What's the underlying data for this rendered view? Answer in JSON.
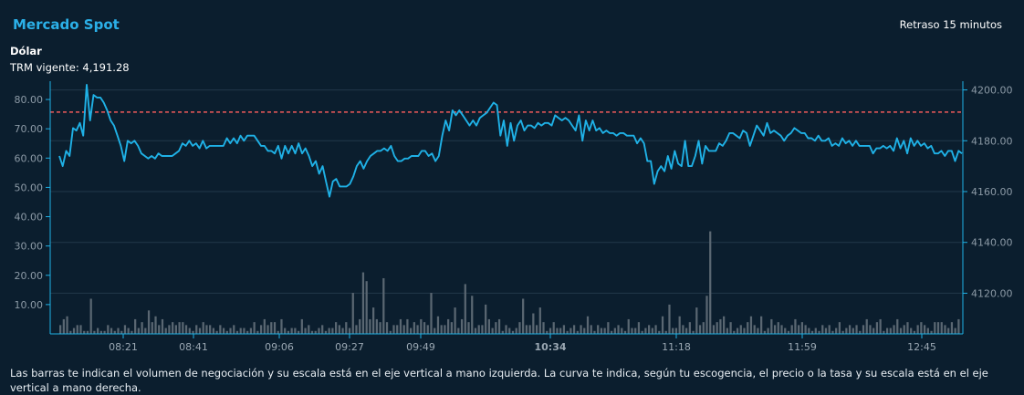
{
  "header": {
    "title": "Mercado Spot",
    "delay": "Retraso 15 minutos",
    "asset": "Dólar",
    "trm": "TRM vigente: 4,191.28"
  },
  "footer_note": "Las barras te indican el volumen de negociación y su escala está en el eje vertical a mano izquierda. La curva te indica, según tu escogencia, el precio o la tasa y su escala está en el eje vertical a mano derecha.",
  "colors": {
    "line": "#1fb1e6",
    "bars": "#5a6772",
    "reference": "#f05a5a",
    "background": "#0b1e2e"
  },
  "chart_data": {
    "type": "line",
    "x_ticks": [
      {
        "label": "08:21",
        "bold": false
      },
      {
        "label": "08:41",
        "bold": false
      },
      {
        "label": "09:06",
        "bold": false
      },
      {
        "label": "09:27",
        "bold": false
      },
      {
        "label": "09:49",
        "bold": false
      },
      {
        "label": "10:34",
        "bold": true
      },
      {
        "label": "11:18",
        "bold": false
      },
      {
        "label": "11:59",
        "bold": false
      },
      {
        "label": "12:45",
        "bold": false
      }
    ],
    "y_left": {
      "ticks": [
        "10.00",
        "20.00",
        "30.00",
        "40.00",
        "50.00",
        "60.00",
        "70.00",
        "80.00"
      ],
      "range": [
        0,
        85
      ]
    },
    "y_right": {
      "ticks": [
        "4120.00",
        "4140.00",
        "4160.00",
        "4180.00",
        "4200.00"
      ],
      "range": [
        4104,
        4202
      ]
    },
    "reference_value": 4191.28,
    "series": [
      {
        "kind": "line",
        "axis": "right",
        "values": [
          4174,
          4170,
          4176,
          4174,
          4185,
          4184,
          4187,
          4182,
          4202,
          4188,
          4198,
          4197,
          4197,
          4195,
          4192,
          4188,
          4186,
          4182,
          4178,
          4172,
          4180,
          4179,
          4180,
          4178,
          4175,
          4174,
          4173,
          4174,
          4173,
          4175,
          4174,
          4174,
          4174,
          4174,
          4175,
          4176,
          4179,
          4178,
          4180,
          4178,
          4179,
          4177,
          4180,
          4177,
          4178,
          4178,
          4178,
          4178,
          4178,
          4181,
          4179,
          4181,
          4179,
          4182,
          4180,
          4182,
          4182,
          4182,
          4180,
          4178,
          4178,
          4176,
          4176,
          4175,
          4178,
          4173,
          4178,
          4175,
          4178,
          4175,
          4179,
          4175,
          4177,
          4174,
          4170,
          4172,
          4167,
          4170,
          4164,
          4158,
          4164,
          4165,
          4162,
          4162,
          4162,
          4163,
          4166,
          4170,
          4172,
          4169,
          4172,
          4174,
          4175,
          4176,
          4176,
          4177,
          4176,
          4178,
          4174,
          4172,
          4172,
          4173,
          4173,
          4174,
          4174,
          4174,
          4176,
          4176,
          4174,
          4175,
          4172,
          4174,
          4182,
          4188,
          4184,
          4192,
          4190,
          4192,
          4190,
          4188,
          4186,
          4188,
          4186,
          4189,
          4190,
          4191,
          4193,
          4195,
          4194,
          4182,
          4188,
          4178,
          4187,
          4180,
          4186,
          4188,
          4184,
          4186,
          4186,
          4185,
          4187,
          4186,
          4187,
          4187,
          4186,
          4190,
          4189,
          4188,
          4189,
          4188,
          4186,
          4184,
          4190,
          4180,
          4188,
          4184,
          4188,
          4184,
          4185,
          4183,
          4184,
          4183,
          4183,
          4182,
          4183,
          4183,
          4182,
          4182,
          4182,
          4179,
          4181,
          4179,
          4172,
          4172,
          4163,
          4168,
          4170,
          4168,
          4174,
          4169,
          4176,
          4171,
          4170,
          4180,
          4170,
          4170,
          4174,
          4180,
          4171,
          4178,
          4176,
          4176,
          4176,
          4179,
          4178,
          4180,
          4183,
          4183,
          4182,
          4181,
          4184,
          4183,
          4178,
          4182,
          4186,
          4184,
          4182,
          4187,
          4183,
          4184,
          4183,
          4182,
          4180,
          4182,
          4183,
          4185,
          4184,
          4183,
          4183,
          4181,
          4181,
          4180,
          4182,
          4180,
          4180,
          4181,
          4178,
          4179,
          4178,
          4181,
          4179,
          4180,
          4178,
          4180,
          4178,
          4178,
          4178,
          4178,
          4175,
          4177,
          4177,
          4178,
          4177,
          4178,
          4176,
          4181,
          4177,
          4180,
          4175,
          4181,
          4178,
          4180,
          4178,
          4179,
          4177,
          4178,
          4175,
          4175,
          4176,
          4174,
          4176,
          4176,
          4172,
          4176,
          4175
        ]
      },
      {
        "kind": "bar",
        "axis": "left",
        "values": [
          3,
          5,
          6,
          1,
          2,
          3,
          3,
          1,
          1,
          12,
          1,
          2,
          1,
          1,
          3,
          2,
          1,
          2,
          1,
          3,
          2,
          1,
          5,
          2,
          4,
          2,
          8,
          4,
          6,
          3,
          5,
          2,
          3,
          4,
          3,
          4,
          4,
          3,
          2,
          1,
          3,
          2,
          4,
          3,
          3,
          2,
          1,
          3,
          2,
          1,
          2,
          3,
          1,
          2,
          2,
          1,
          2,
          4,
          1,
          3,
          5,
          3,
          4,
          4,
          1,
          5,
          2,
          1,
          2,
          2,
          1,
          5,
          2,
          3,
          1,
          1,
          2,
          3,
          1,
          2,
          2,
          4,
          3,
          2,
          4,
          2,
          14,
          3,
          5,
          21,
          18,
          5,
          9,
          5,
          4,
          19,
          4,
          1,
          3,
          3,
          5,
          3,
          5,
          2,
          4,
          3,
          5,
          4,
          3,
          14,
          2,
          6,
          3,
          3,
          5,
          4,
          9,
          2,
          5,
          17,
          4,
          13,
          2,
          3,
          3,
          10,
          5,
          2,
          4,
          5,
          1,
          3,
          2,
          1,
          2,
          4,
          12,
          3,
          3,
          7,
          3,
          9,
          4,
          1,
          2,
          4,
          2,
          2,
          3,
          1,
          2,
          3,
          1,
          3,
          2,
          6,
          3,
          1,
          3,
          2,
          2,
          4,
          1,
          2,
          3,
          2,
          1,
          5,
          2,
          2,
          4,
          1,
          2,
          3,
          2,
          3,
          1,
          6,
          1,
          10,
          2,
          2,
          6,
          3,
          2,
          4,
          1,
          9,
          3,
          4,
          13,
          35,
          3,
          4,
          5,
          6,
          2,
          4,
          1,
          2,
          3,
          2,
          4,
          6,
          3,
          2,
          6,
          1,
          2,
          5,
          3,
          4,
          3,
          2,
          1,
          3,
          5,
          3,
          4,
          3,
          2,
          1,
          2,
          1,
          3,
          2,
          3,
          1,
          2,
          4,
          1,
          2,
          3,
          2,
          3,
          1,
          3,
          5,
          3,
          2,
          4,
          5,
          1,
          2,
          2,
          3,
          5,
          2,
          3,
          4,
          2,
          1,
          3,
          4,
          3,
          2,
          1,
          4,
          4,
          4,
          3,
          2,
          4,
          2,
          5
        ]
      }
    ]
  }
}
